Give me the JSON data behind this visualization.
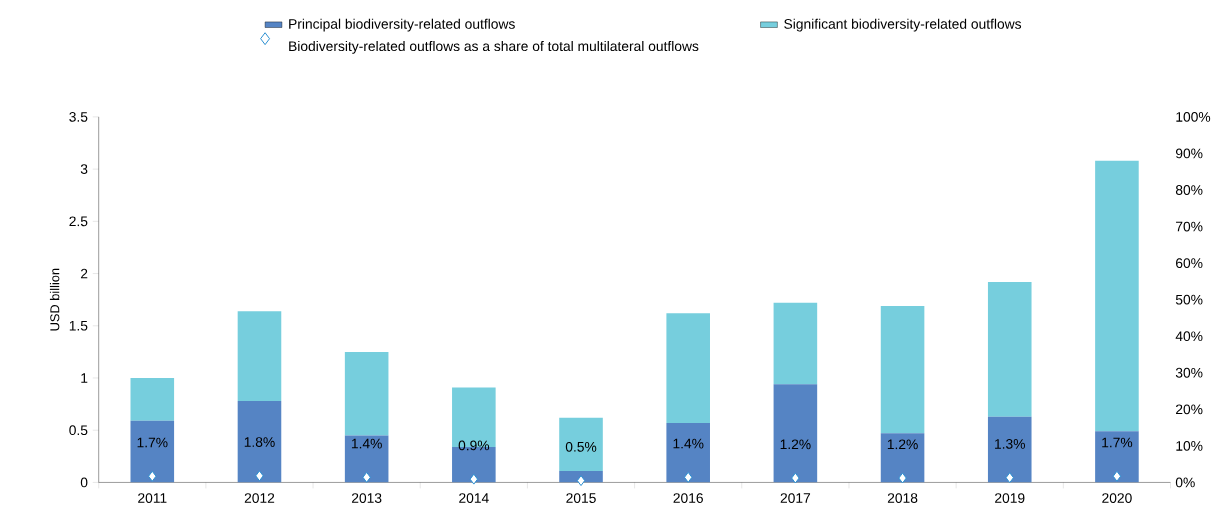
{
  "chart_data": {
    "type": "bar",
    "stacked": true,
    "ylabel": "USD billion",
    "legend": "top",
    "categories": [
      "2011",
      "2012",
      "2013",
      "2014",
      "2015",
      "2016",
      "2017",
      "2018",
      "2019",
      "2020"
    ],
    "ylim": [
      0,
      3.5
    ],
    "yticks": [
      0,
      0.5,
      1,
      1.5,
      2,
      2.5,
      3,
      3.5
    ],
    "y2lim": [
      0,
      100
    ],
    "y2ticks": [
      {
        "value": 0,
        "label": "0%"
      },
      {
        "value": 10,
        "label": "10%"
      },
      {
        "value": 20,
        "label": "20%"
      },
      {
        "value": 30,
        "label": "30%"
      },
      {
        "value": 40,
        "label": "40%"
      },
      {
        "value": 50,
        "label": "50%"
      },
      {
        "value": 60,
        "label": "60%"
      },
      {
        "value": 70,
        "label": "70%"
      },
      {
        "value": 80,
        "label": "80%"
      },
      {
        "value": 90,
        "label": "90%"
      },
      {
        "value": 100,
        "label": "100%"
      }
    ],
    "series": [
      {
        "name": "Principal biodiversity-related outflows",
        "color": "#5584c4",
        "values": [
          0.59,
          0.78,
          0.45,
          0.34,
          0.11,
          0.57,
          0.94,
          0.47,
          0.63,
          0.49
        ]
      },
      {
        "name": "Significant biodiversity-related outflows",
        "color": "#76cedd",
        "values": [
          0.41,
          0.86,
          0.8,
          0.57,
          0.51,
          1.05,
          0.78,
          1.22,
          1.29,
          2.59
        ]
      },
      {
        "name": "Biodiversity-related outflows as a share of total multilateral outflows",
        "type": "scatter",
        "axis": "y2",
        "marker": "diamond",
        "color": "#2a8fd0",
        "values": [
          1.7,
          1.8,
          1.4,
          0.9,
          0.5,
          1.4,
          1.2,
          1.2,
          1.3,
          1.7
        ],
        "value_labels": [
          "1.7%",
          "1.8%",
          "1.4%",
          "0.9%",
          "0.5%",
          "1.4%",
          "1.2%",
          "1.2%",
          "1.3%",
          "1.7%"
        ]
      }
    ]
  }
}
